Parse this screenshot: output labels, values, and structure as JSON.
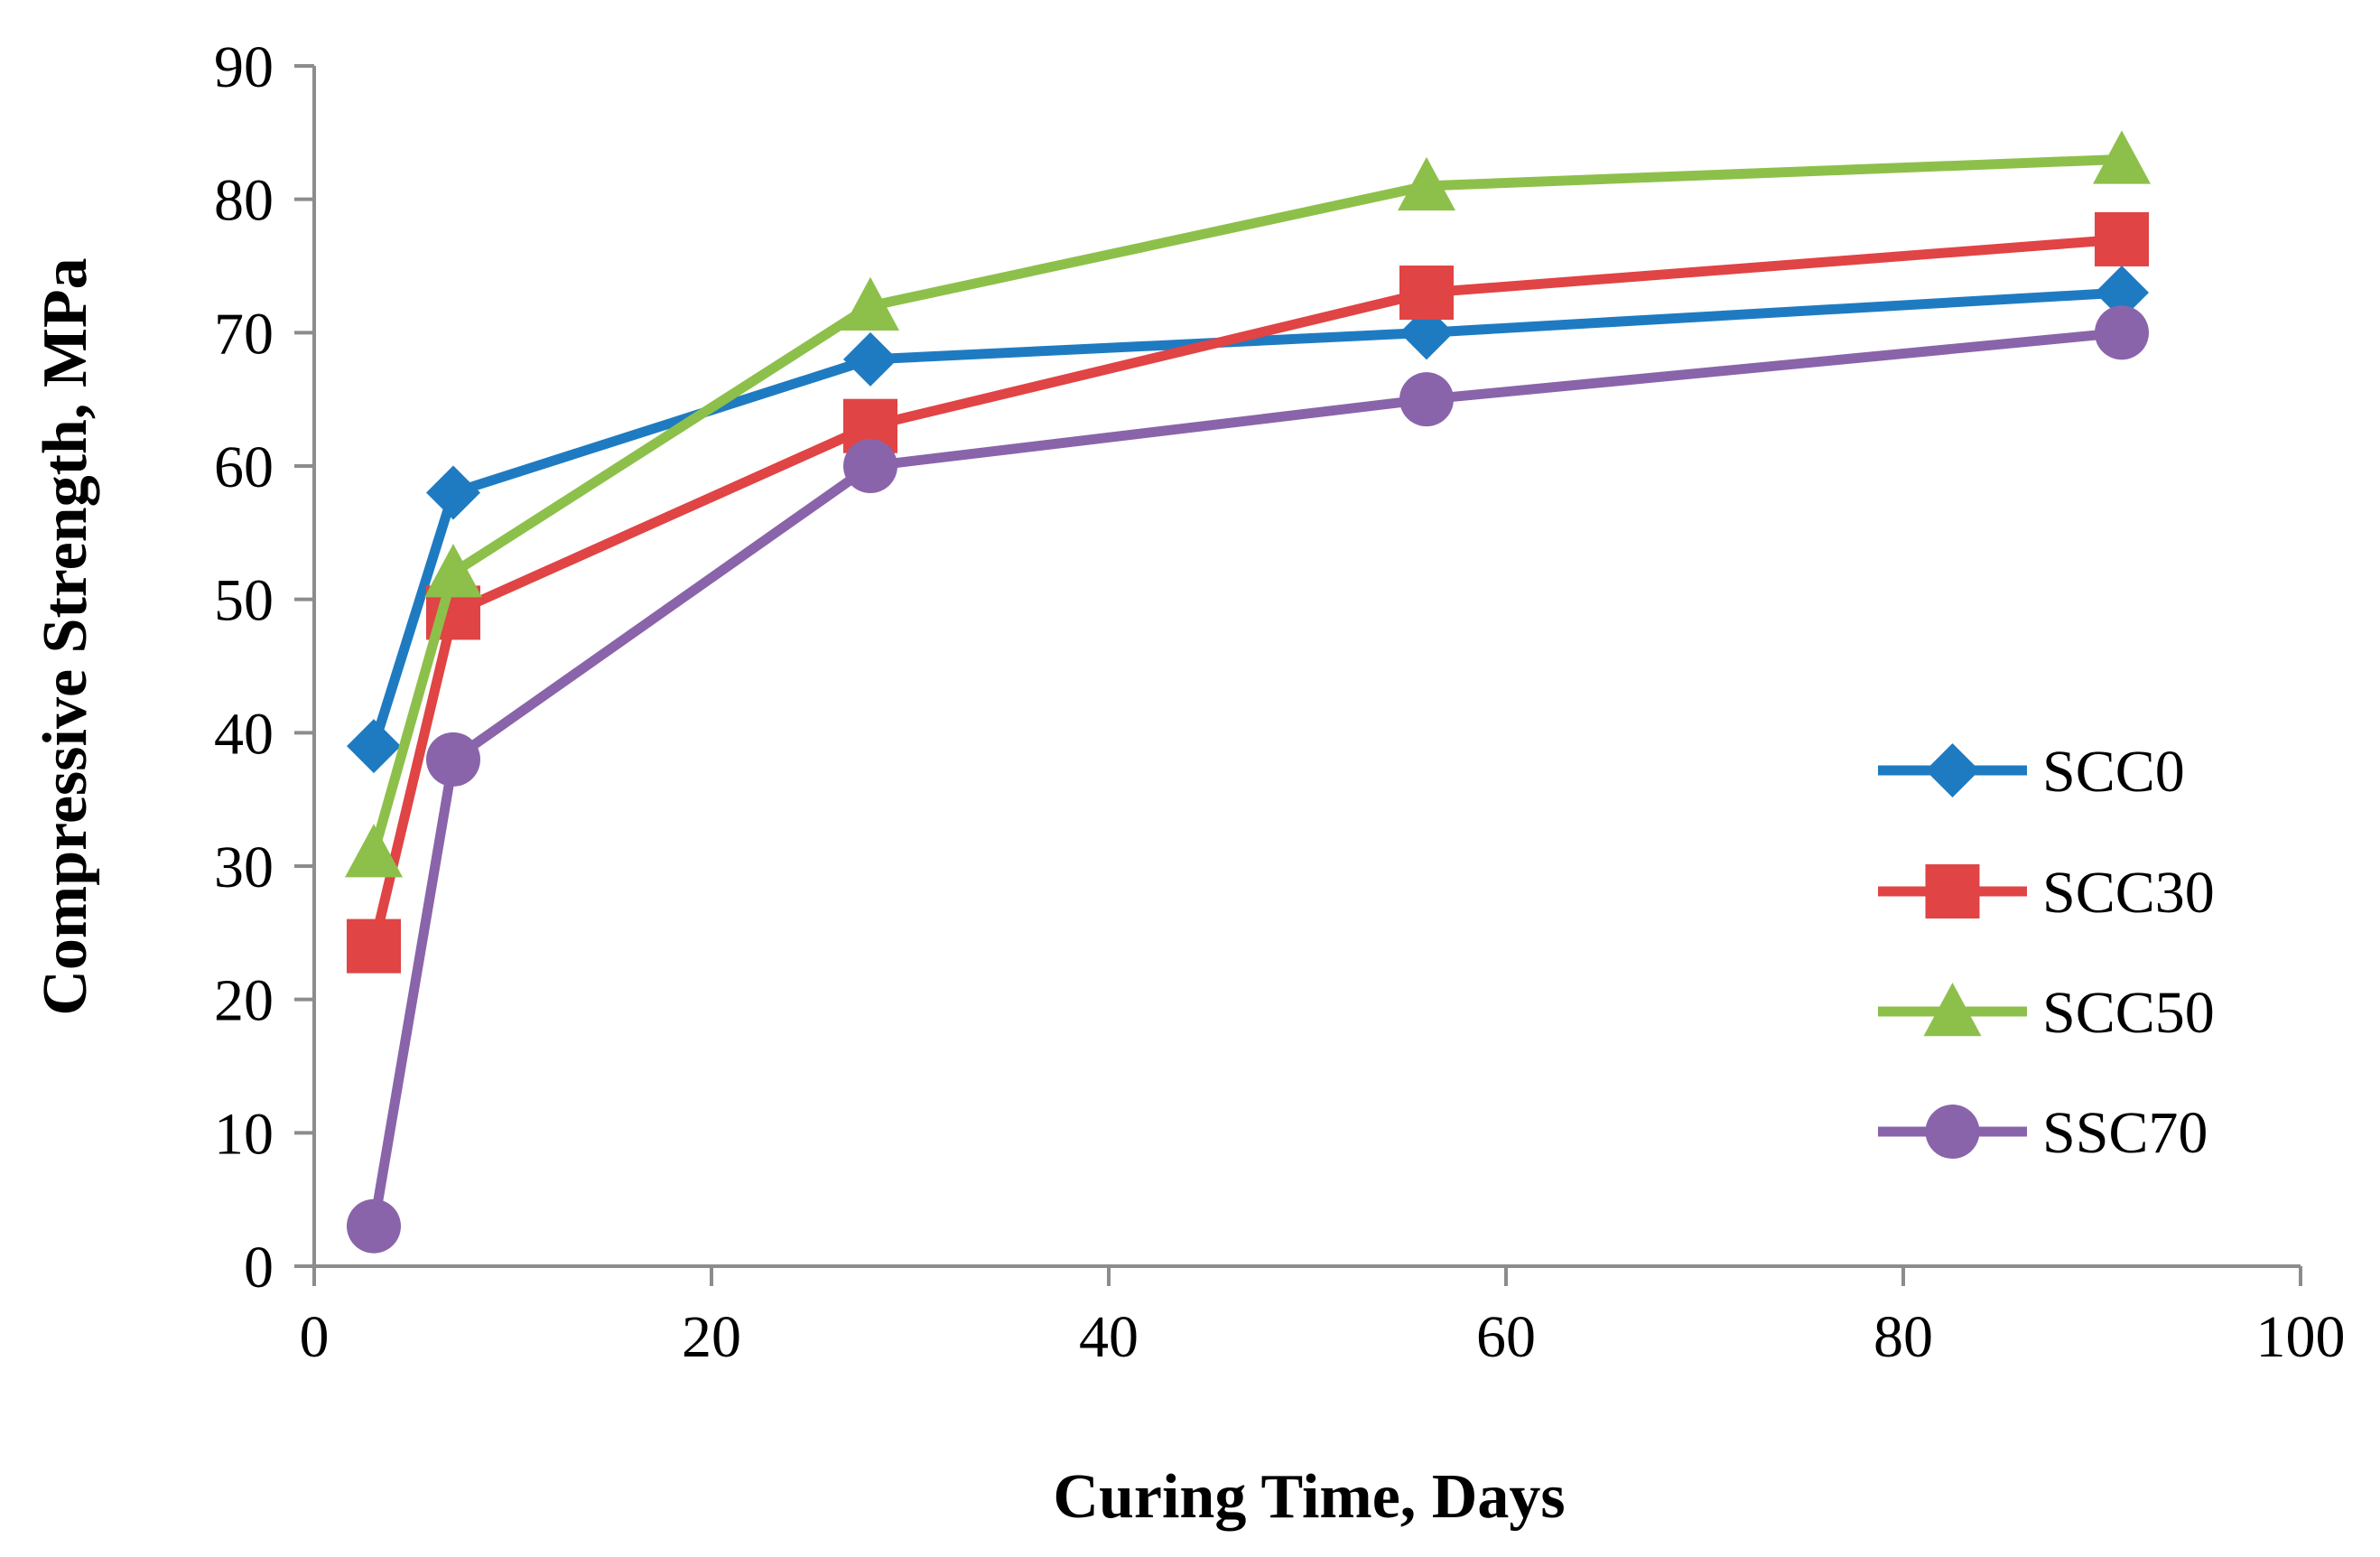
{
  "chart_data": {
    "type": "line",
    "title": "",
    "xlabel": "Curing Time, Days",
    "ylabel": "Compressive Strength, MPa",
    "xlim": [
      0,
      100
    ],
    "ylim": [
      0,
      90
    ],
    "x_ticks": [
      0,
      20,
      40,
      60,
      80,
      100
    ],
    "x_tick_labels": [
      "0",
      "20",
      "40",
      "60",
      "80",
      "100"
    ],
    "y_ticks": [
      0,
      10,
      20,
      30,
      40,
      50,
      60,
      70,
      80,
      90
    ],
    "y_tick_labels": [
      "0",
      "10",
      "20",
      "30",
      "40",
      "50",
      "60",
      "70",
      "80",
      "90"
    ],
    "grid": false,
    "legend_position": "right",
    "x": [
      3,
      7,
      28,
      56,
      91
    ],
    "series": [
      {
        "name": "SCC0",
        "marker": "diamond",
        "color": "#1f7bc1",
        "values": [
          39,
          58,
          68,
          70,
          73
        ]
      },
      {
        "name": "SCC30",
        "marker": "square",
        "color": "#e04444",
        "values": [
          24,
          49,
          63,
          73,
          77
        ]
      },
      {
        "name": "SCC50",
        "marker": "triangle",
        "color": "#8dc04a",
        "values": [
          31,
          52,
          72,
          81,
          83
        ]
      },
      {
        "name": "SSC70",
        "marker": "circle",
        "color": "#8a64aa",
        "values": [
          3,
          38,
          60,
          65,
          70
        ]
      }
    ]
  }
}
